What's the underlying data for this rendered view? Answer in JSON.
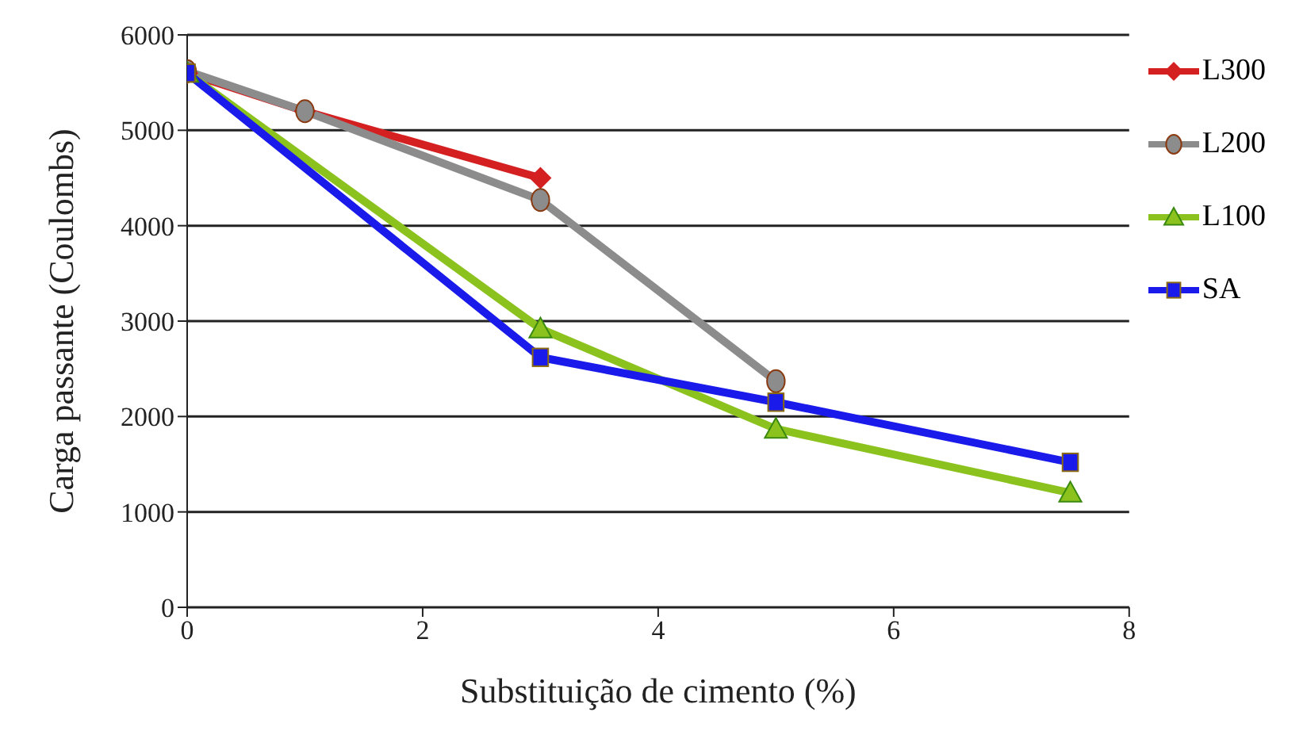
{
  "chart_data": {
    "type": "line",
    "xlabel": "Substituição de cimento (%)",
    "ylabel": "Carga passante (Coulombs)",
    "xlim": [
      0,
      8
    ],
    "xticks": [
      0,
      2,
      4,
      6,
      8
    ],
    "ylim": [
      0,
      6000
    ],
    "yticks": [
      0,
      1000,
      2000,
      3000,
      4000,
      5000,
      6000
    ],
    "grid": "y",
    "legend": "top right",
    "line_style": "solid",
    "series": [
      {
        "name": "L300",
        "color": "#d42020",
        "marker": "diamond",
        "x": [
          0,
          1,
          3
        ],
        "values": [
          5600,
          5200,
          4500
        ]
      },
      {
        "name": "L200",
        "color": "#8c8c8c",
        "marker": "circle",
        "x": [
          0,
          1,
          3,
          5
        ],
        "values": [
          5620,
          5200,
          4270,
          2370
        ]
      },
      {
        "name": "L100",
        "color": "#8cc21e",
        "marker": "triangle",
        "x": [
          0,
          3,
          5,
          7.5
        ],
        "values": [
          5600,
          2920,
          1870,
          1200
        ]
      },
      {
        "name": "SA",
        "color": "#1a1aeb",
        "marker": "square",
        "x": [
          0,
          3,
          5,
          7.5
        ],
        "values": [
          5600,
          2620,
          2150,
          1520
        ]
      }
    ]
  }
}
